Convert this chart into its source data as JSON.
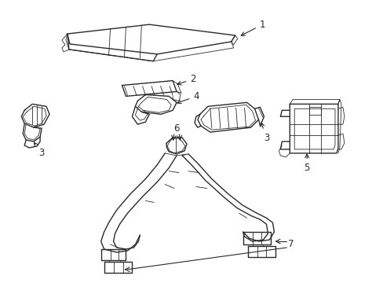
{
  "background_color": "#ffffff",
  "line_color": "#2a2a2a",
  "line_width": 1.0,
  "label_fontsize": 8.5,
  "fig_width": 4.89,
  "fig_height": 3.6,
  "dpi": 100
}
